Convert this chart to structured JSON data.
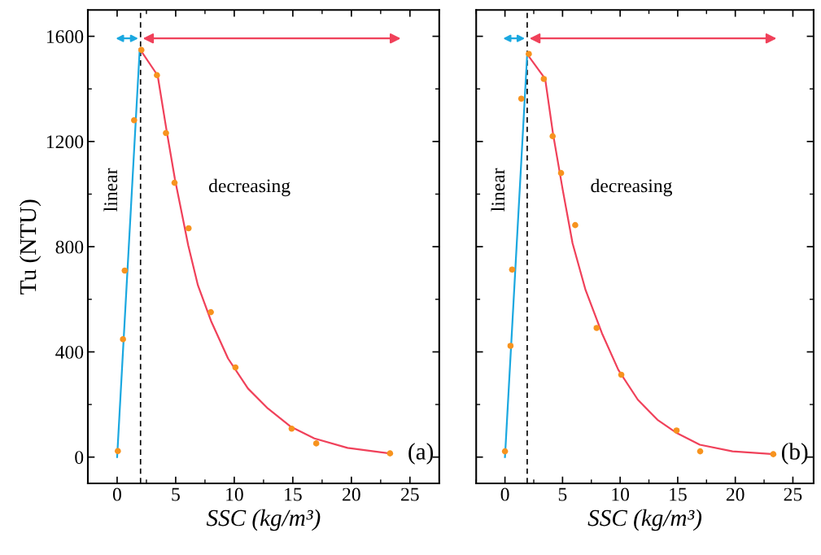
{
  "chart_data": [
    {
      "type": "scatter",
      "xlabel": "SSC (kg/m³)",
      "ylabel": "Tu (NTU)",
      "xlim": [
        -2.5,
        27.5
      ],
      "ylim": [
        -100,
        1700
      ],
      "xticks": [
        0,
        5,
        10,
        15,
        20,
        25
      ],
      "yticks": [
        0,
        400,
        800,
        1200,
        1600
      ],
      "grid": false,
      "annotations": [
        "linear",
        "decreasing",
        "(a)"
      ],
      "ref_lines": [
        {
          "axis": "x",
          "value": 2.0,
          "color": "#000000",
          "line_style": "dashed"
        }
      ],
      "series": [
        {
          "type": "line",
          "color": "#1ba8e0",
          "x": [
            0,
            1.93
          ],
          "values": [
            0,
            1552
          ]
        },
        {
          "type": "line",
          "color": "#f0415a",
          "x": [
            1.93,
            3.46,
            4.2,
            4.93,
            5.5,
            6.07,
            6.9,
            8.05,
            9.47,
            11.17,
            12.87,
            14.85,
            16.84,
            19.67,
            23.3
          ],
          "values": [
            1552,
            1451,
            1248,
            1058,
            932,
            805,
            653,
            514,
            375,
            261,
            185,
            115,
            71,
            35,
            14
          ]
        },
        {
          "color": "#f7931e",
          "marker": "circle",
          "x": [
            0.06,
            0.5,
            0.65,
            1.45,
            2.07,
            3.4,
            4.17,
            4.9,
            6.1,
            8.0,
            10.1,
            14.9,
            17.0,
            23.3
          ],
          "values": [
            23,
            448,
            709,
            1281,
            1548,
            1452,
            1232,
            1043,
            870,
            551,
            341,
            108,
            52,
            14
          ]
        }
      ]
    },
    {
      "type": "scatter",
      "xlabel": "SSC (kg/m³)",
      "xlim": [
        -2.5,
        26.8
      ],
      "ylim": [
        -100,
        1700
      ],
      "xticks": [
        0,
        5,
        10,
        15,
        20,
        25
      ],
      "yticks": [
        0,
        400,
        800,
        1200,
        1600
      ],
      "tick_labels": "x",
      "grid": false,
      "annotations": [
        "linear",
        "decreasing",
        "(b)"
      ],
      "ref_lines": [
        {
          "axis": "x",
          "value": 1.93,
          "color": "#000000",
          "line_style": "dashed"
        }
      ],
      "series": [
        {
          "type": "line",
          "color": "#1ba8e0",
          "x": [
            0,
            1.93
          ],
          "values": [
            0,
            1532
          ]
        },
        {
          "type": "line",
          "color": "#f0415a",
          "x": [
            1.93,
            3.49,
            4.17,
            5.02,
            5.87,
            7.0,
            8.42,
            9.84,
            11.54,
            13.24,
            14.94,
            16.92,
            19.76,
            23.3
          ],
          "values": [
            1532,
            1438,
            1230,
            1015,
            813,
            635,
            471,
            332,
            218,
            142,
            91,
            47,
            22,
            11
          ]
        },
        {
          "color": "#f7931e",
          "marker": "circle",
          "x": [
            0,
            0.48,
            0.62,
            1.42,
            2.07,
            3.37,
            4.14,
            4.87,
            6.1,
            7.96,
            10.1,
            14.9,
            16.95,
            23.3
          ],
          "values": [
            22,
            423,
            713,
            1363,
            1533,
            1438,
            1220,
            1080,
            882,
            491,
            313,
            101,
            22,
            11
          ]
        }
      ]
    }
  ]
}
